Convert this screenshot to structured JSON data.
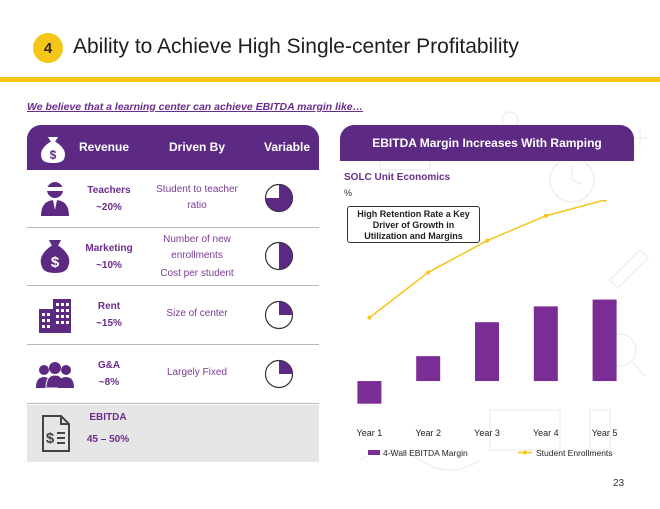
{
  "slide": {
    "number": "4",
    "title": "Ability to Achieve High Single-center Profitability",
    "subtitle": "We believe that a learning center can achieve EBITDA margin like…",
    "page_number": "23"
  },
  "table": {
    "headers": {
      "revenue": "Revenue",
      "driven_by": "Driven By",
      "variable": "Variable"
    },
    "header_icon": "money-bag-icon",
    "rows": [
      {
        "icon": "teacher-icon",
        "label": "Teachers",
        "pct": "~20%",
        "drivers": [
          "Student to teacher",
          "ratio"
        ],
        "variable_fraction": 0.75
      },
      {
        "icon": "money-bag-icon",
        "label": "Marketing",
        "pct": "~10%",
        "drivers": [
          "Number of new",
          "enrollments",
          "Cost per student"
        ],
        "variable_fraction": 0.5
      },
      {
        "icon": "building-icon",
        "label": "Rent",
        "pct": "~15%",
        "drivers": [
          "Size of center"
        ],
        "variable_fraction": 0.25
      },
      {
        "icon": "people-group-icon",
        "label": "G&A",
        "pct": "~8%",
        "drivers": [
          "Largely Fixed"
        ],
        "variable_fraction": 0.25
      }
    ],
    "ebitda": {
      "icon": "document-dollar-icon",
      "label": "EBITDA",
      "value": "45 – 50%"
    }
  },
  "chart_panel": {
    "header": "EBITDA Margin Increases With Ramping",
    "title": "SOLC Unit Economics",
    "unit": "%",
    "callout": [
      "High Retention Rate a Key",
      "Driver of Growth in",
      "Utilization and Margins"
    ]
  },
  "chart_data": {
    "type": "bar",
    "categories": [
      "Year 1",
      "Year 2",
      "Year 3",
      "Year 4",
      "Year 5"
    ],
    "series": [
      {
        "name": "4-Wall EBITDA Margin",
        "type": "bar",
        "values": [
          -10,
          11,
          26,
          33,
          36
        ],
        "color": "#7b2d96"
      },
      {
        "name": "Student Enrollments",
        "type": "line",
        "values": [
          28,
          48,
          62,
          73,
          80
        ],
        "color": "#F5C518"
      }
    ],
    "ylim": [
      -15,
      80
    ],
    "xlabel": "",
    "ylabel": "%",
    "legend_position": "bottom"
  },
  "colors": {
    "purple": "#5d2a83",
    "accent": "#7b2d96",
    "yellow": "#F5C518"
  }
}
